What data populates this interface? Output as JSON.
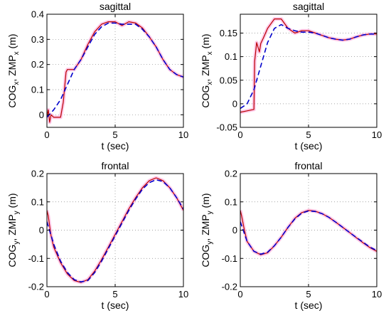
{
  "figure": {
    "colors": {
      "cog_line": "#0000cc",
      "zmp_line": "#b80000",
      "band": "#ff9ad6"
    }
  },
  "chart_data": [
    {
      "type": "line",
      "title": "sagittal",
      "xlabel": "t (sec)",
      "ylabel": {
        "p1": "COG",
        "s1": "x",
        "p2": ", ZMP",
        "s2": "x",
        "p3": " (m)"
      },
      "xlim": [
        0,
        10
      ],
      "ylim": [
        -0.05,
        0.4
      ],
      "xticks": [
        0,
        5,
        10
      ],
      "xtick_labels": [
        "0",
        "5",
        "10"
      ],
      "yticks": [
        0,
        0.1,
        0.2,
        0.3,
        0.4
      ],
      "ytick_labels": [
        "0",
        "0.1",
        "0.2",
        "0.3",
        "0.4"
      ],
      "grid": true,
      "series": [
        {
          "style": "dashed",
          "x": [
            0,
            0.5,
            1,
            1.5,
            2,
            2.5,
            3,
            3.5,
            4,
            4.5,
            5,
            5.5,
            6,
            6.5,
            7,
            7.5,
            8,
            8.5,
            9,
            9.5,
            10
          ],
          "y": [
            -0.01,
            0.02,
            0.06,
            0.12,
            0.18,
            0.22,
            0.27,
            0.32,
            0.35,
            0.365,
            0.365,
            0.36,
            0.36,
            0.36,
            0.34,
            0.31,
            0.27,
            0.22,
            0.18,
            0.16,
            0.15
          ]
        },
        {
          "style": "solid",
          "x": [
            0,
            0.1,
            0.2,
            0.3,
            0.5,
            1,
            1.2,
            1.4,
            1.5,
            2,
            2.5,
            3,
            3.5,
            4,
            4.5,
            5,
            5.5,
            6,
            6.5,
            7,
            7.5,
            8,
            8.5,
            9,
            9.5,
            10
          ],
          "y": [
            -0.01,
            0.02,
            -0.03,
            0.0,
            -0.01,
            -0.01,
            0.05,
            0.17,
            0.18,
            0.18,
            0.22,
            0.28,
            0.33,
            0.36,
            0.37,
            0.37,
            0.355,
            0.37,
            0.365,
            0.345,
            0.31,
            0.27,
            0.22,
            0.18,
            0.16,
            0.15
          ]
        }
      ]
    },
    {
      "type": "line",
      "title": "sagittal",
      "xlabel": "t (sec)",
      "ylabel": {
        "p1": "COG",
        "s1": "x",
        "p2": ", ZMP",
        "s2": "x",
        "p3": " (m)"
      },
      "xlim": [
        0,
        10
      ],
      "ylim": [
        -0.05,
        0.19
      ],
      "xticks": [
        0,
        5,
        10
      ],
      "xtick_labels": [
        "0",
        "5",
        "10"
      ],
      "yticks": [
        -0.05,
        0,
        0.05,
        0.1,
        0.15
      ],
      "ytick_labels": [
        "-0.05",
        "0",
        "0.05",
        "0.1",
        "0.15"
      ],
      "grid": true,
      "series": [
        {
          "style": "dashed",
          "x": [
            0,
            0.5,
            1,
            1.5,
            2,
            2.5,
            3,
            3.5,
            4,
            4.5,
            5,
            5.5,
            6,
            6.5,
            7,
            7.5,
            8,
            8.5,
            9,
            9.5,
            10
          ],
          "y": [
            -0.01,
            0.0,
            0.03,
            0.08,
            0.13,
            0.16,
            0.168,
            0.16,
            0.155,
            0.152,
            0.152,
            0.15,
            0.145,
            0.14,
            0.137,
            0.135,
            0.137,
            0.142,
            0.146,
            0.148,
            0.148
          ]
        },
        {
          "style": "solid",
          "x": [
            0,
            0.5,
            1,
            1.05,
            1.2,
            1.4,
            1.5,
            1.7,
            2,
            2.5,
            3,
            3.5,
            4,
            4.5,
            5,
            5.5,
            6,
            6.5,
            7,
            7.5,
            8,
            8.5,
            9,
            9.5,
            10
          ],
          "y": [
            -0.018,
            -0.015,
            -0.012,
            0.09,
            0.13,
            0.11,
            0.128,
            0.14,
            0.16,
            0.18,
            0.18,
            0.16,
            0.15,
            0.155,
            0.155,
            0.15,
            0.145,
            0.14,
            0.137,
            0.135,
            0.137,
            0.142,
            0.146,
            0.148,
            0.148
          ]
        }
      ]
    },
    {
      "type": "line",
      "title": "frontal",
      "xlabel": "t (sec)",
      "ylabel": {
        "p1": "COG",
        "s1": "y",
        "p2": ", ZMP",
        "s2": "y",
        "p3": " (m)"
      },
      "xlim": [
        0,
        10
      ],
      "ylim": [
        -0.2,
        0.2
      ],
      "xticks": [
        0,
        5,
        10
      ],
      "xtick_labels": [
        "0",
        "5",
        "10"
      ],
      "yticks": [
        -0.2,
        -0.1,
        0,
        0.1,
        0.2
      ],
      "ytick_labels": [
        "-0.2",
        "-0.1",
        "0",
        "0.1",
        "0.2"
      ],
      "grid": true,
      "series": [
        {
          "style": "dashed",
          "x": [
            0,
            0.5,
            1,
            1.5,
            2,
            2.5,
            3,
            3.5,
            4,
            4.5,
            5,
            5.5,
            6,
            6.5,
            7,
            7.5,
            8,
            8.5,
            9,
            9.5,
            10
          ],
          "y": [
            0.03,
            -0.05,
            -0.11,
            -0.15,
            -0.175,
            -0.183,
            -0.178,
            -0.15,
            -0.11,
            -0.065,
            -0.02,
            0.025,
            0.07,
            0.11,
            0.145,
            0.168,
            0.178,
            0.172,
            0.15,
            0.115,
            0.075
          ]
        },
        {
          "style": "solid",
          "x": [
            0,
            0.1,
            0.3,
            0.5,
            1,
            1.5,
            2,
            2.5,
            3,
            3.5,
            4,
            4.5,
            5,
            5.5,
            6,
            6.5,
            7,
            7.5,
            8,
            8.5,
            9,
            9.5,
            10
          ],
          "y": [
            0.07,
            0.05,
            -0.02,
            -0.06,
            -0.115,
            -0.155,
            -0.178,
            -0.185,
            -0.175,
            -0.145,
            -0.105,
            -0.06,
            -0.015,
            0.03,
            0.075,
            0.115,
            0.15,
            0.175,
            0.185,
            0.175,
            0.15,
            0.115,
            0.07
          ]
        }
      ]
    },
    {
      "type": "line",
      "title": "frontal",
      "xlabel": "t (sec)",
      "ylabel": {
        "p1": "COG",
        "s1": "y",
        "p2": ", ZMP",
        "s2": "y",
        "p3": " (m)"
      },
      "xlim": [
        0,
        10
      ],
      "ylim": [
        -0.2,
        0.2
      ],
      "xticks": [
        0,
        5,
        10
      ],
      "xtick_labels": [
        "0",
        "5",
        "10"
      ],
      "yticks": [
        -0.2,
        -0.1,
        0,
        0.1,
        0.2
      ],
      "ytick_labels": [
        "-0.2",
        "-0.1",
        "0",
        "0.1",
        "0.2"
      ],
      "grid": true,
      "series": [
        {
          "style": "dashed",
          "x": [
            0,
            0.5,
            1,
            1.5,
            2,
            2.5,
            3,
            3.5,
            4,
            4.5,
            5,
            5.5,
            6,
            6.5,
            7,
            7.5,
            8,
            8.5,
            9,
            9.5,
            10
          ],
          "y": [
            0.03,
            -0.04,
            -0.075,
            -0.085,
            -0.078,
            -0.055,
            -0.025,
            0.01,
            0.04,
            0.06,
            0.068,
            0.066,
            0.058,
            0.045,
            0.028,
            0.01,
            -0.008,
            -0.026,
            -0.043,
            -0.06,
            -0.072
          ]
        },
        {
          "style": "solid",
          "x": [
            0,
            0.1,
            0.3,
            0.5,
            1,
            1.5,
            2,
            2.5,
            3,
            3.5,
            4,
            4.5,
            5,
            5.5,
            6,
            6.5,
            7,
            7.5,
            8,
            8.5,
            9,
            9.5,
            10
          ],
          "y": [
            0.07,
            0.05,
            0.0,
            -0.04,
            -0.075,
            -0.087,
            -0.08,
            -0.055,
            -0.025,
            0.01,
            0.042,
            0.062,
            0.07,
            0.067,
            0.058,
            0.045,
            0.028,
            0.01,
            -0.008,
            -0.027,
            -0.045,
            -0.062,
            -0.075
          ]
        }
      ]
    }
  ]
}
